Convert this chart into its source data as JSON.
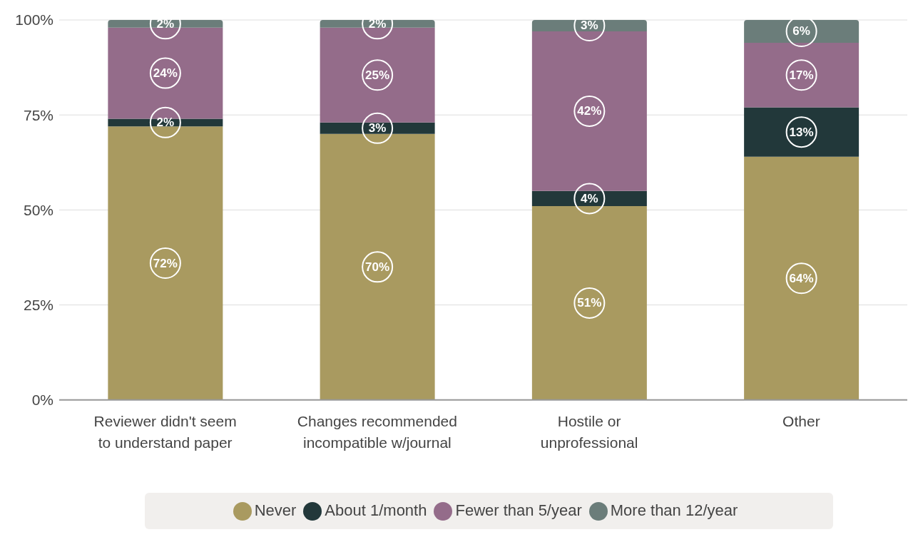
{
  "chart_data": {
    "type": "bar",
    "stacked": true,
    "categories": [
      "Reviewer didn't seem to understand paper",
      "Changes recommended incompatible w/journal",
      "Hostile or unprofessional",
      "Other"
    ],
    "series": [
      {
        "name": "Never",
        "color": "#a99a60",
        "values": [
          72,
          70,
          51,
          64
        ],
        "value_labels": [
          "72%",
          "70%",
          "51%",
          "64%"
        ]
      },
      {
        "name": "About 1/month",
        "color": "#22383a",
        "values": [
          2,
          3,
          4,
          13
        ],
        "value_labels": [
          "2%",
          "3%",
          "4%",
          "13%"
        ]
      },
      {
        "name": "Fewer than 5/year",
        "color": "#946c8a",
        "values": [
          24,
          25,
          42,
          17
        ],
        "value_labels": [
          "24%",
          "25%",
          "42%",
          "17%"
        ]
      },
      {
        "name": "More than 12/year",
        "color": "#6b7d7a",
        "values": [
          2,
          2,
          3,
          6
        ],
        "value_labels": [
          "2%",
          "2%",
          "3%",
          "6%"
        ]
      }
    ],
    "ylim": [
      0,
      100
    ],
    "yticks": [
      {
        "value": 0,
        "label": "0%"
      },
      {
        "value": 25,
        "label": "25%"
      },
      {
        "value": 50,
        "label": "50%"
      },
      {
        "value": 75,
        "label": "75%"
      },
      {
        "value": 100,
        "label": "100%"
      }
    ],
    "grid": "y",
    "legend": "bottom"
  }
}
